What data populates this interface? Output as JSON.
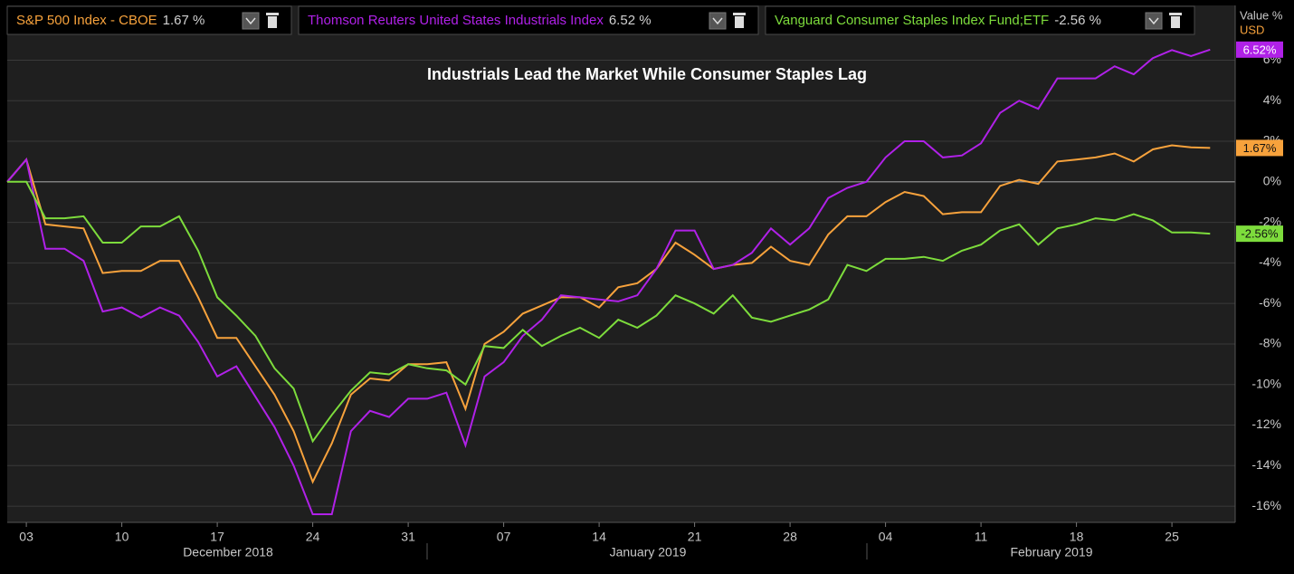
{
  "chart_data": {
    "type": "line",
    "title": "Industrials Lead the Market While Consumer Staples Lag",
    "y_label": "Value %",
    "y_unit": "USD",
    "categories": [
      null,
      "03",
      null,
      null,
      null,
      null,
      "10",
      null,
      null,
      null,
      null,
      "17",
      null,
      null,
      null,
      null,
      "24",
      null,
      null,
      null,
      null,
      "31",
      null,
      null,
      null,
      null,
      "07",
      null,
      null,
      null,
      null,
      "14",
      null,
      null,
      null,
      null,
      "21",
      null,
      null,
      null,
      null,
      "28",
      null,
      null,
      null,
      null,
      "04",
      null,
      null,
      null,
      null,
      "11",
      null,
      null,
      null,
      null,
      "18",
      null,
      null,
      null,
      null,
      "25",
      null,
      null
    ],
    "month_labels": [
      "December 2018",
      "January 2019",
      "February 2019"
    ],
    "ylim": [
      -16.8,
      8.7
    ],
    "yticks": [
      {
        "value": 6,
        "label": "6%"
      },
      {
        "value": 4,
        "label": "4%"
      },
      {
        "value": 2,
        "label": "2%"
      },
      {
        "value": 0,
        "label": "0%"
      },
      {
        "value": -2,
        "label": "-2%"
      },
      {
        "value": -4,
        "label": "-4%"
      },
      {
        "value": -6,
        "label": "-6%"
      },
      {
        "value": -8,
        "label": "-8%"
      },
      {
        "value": -10,
        "label": "-10%"
      },
      {
        "value": -12,
        "label": "-12%"
      },
      {
        "value": -14,
        "label": "-14%"
      },
      {
        "value": -16,
        "label": "-16%"
      }
    ],
    "grid": true,
    "zero_line": true,
    "series": [
      {
        "name": "S&P 500 Index - CBOE",
        "legend_value": "1.67 %",
        "end_label": "1.67%",
        "color": "#f7a23c",
        "values": [
          0,
          1.1,
          -2.1,
          -2.2,
          -2.3,
          -4.5,
          -4.4,
          -4.4,
          -3.9,
          -3.9,
          -5.7,
          -7.7,
          -7.7,
          -9.1,
          -10.5,
          -12.3,
          -14.8,
          -12.9,
          -10.5,
          -9.7,
          -9.8,
          -9.0,
          -9.0,
          -8.9,
          -11.2,
          -8.0,
          -7.4,
          -6.5,
          -6.1,
          -5.7,
          -5.7,
          -6.2,
          -5.2,
          -5.0,
          -4.3,
          -3.0,
          -3.6,
          -4.3,
          -4.1,
          -4.0,
          -3.2,
          -3.9,
          -4.1,
          -2.6,
          -1.7,
          -1.7,
          -1.0,
          -0.5,
          -0.7,
          -1.6,
          -1.5,
          -1.5,
          -0.2,
          0.1,
          -0.1,
          1.0,
          1.1,
          1.2,
          1.4,
          1.0,
          1.6,
          1.8,
          1.7,
          1.67
        ]
      },
      {
        "name": "Thomson Reuters United States Industrials Index",
        "legend_value": "6.52 %",
        "end_label": "6.52%",
        "color": "#b021e8",
        "values": [
          0,
          1.1,
          -3.3,
          -3.3,
          -3.9,
          -6.4,
          -6.2,
          -6.7,
          -6.2,
          -6.6,
          -7.9,
          -9.6,
          -9.1,
          -10.6,
          -12.1,
          -14.0,
          -16.4,
          -16.4,
          -12.3,
          -11.3,
          -11.6,
          -10.7,
          -10.7,
          -10.4,
          -13.0,
          -9.6,
          -8.9,
          -7.6,
          -6.8,
          -5.6,
          -5.7,
          -5.8,
          -5.9,
          -5.6,
          -4.3,
          -2.4,
          -2.4,
          -4.3,
          -4.1,
          -3.5,
          -2.3,
          -3.1,
          -2.3,
          -0.8,
          -0.3,
          0.0,
          1.2,
          2.0,
          2.0,
          1.2,
          1.3,
          1.9,
          3.4,
          4.0,
          3.6,
          5.1,
          5.1,
          5.1,
          5.7,
          5.3,
          6.1,
          6.5,
          6.2,
          6.52
        ]
      },
      {
        "name": "Vanguard Consumer Staples Index Fund;ETF",
        "legend_value": "-2.56 %",
        "end_label": "-2.56%",
        "color": "#7ddc3c",
        "values": [
          0,
          0.0,
          -1.8,
          -1.8,
          -1.7,
          -3.0,
          -3.0,
          -2.2,
          -2.2,
          -1.7,
          -3.4,
          -5.7,
          -6.6,
          -7.6,
          -9.2,
          -10.2,
          -12.8,
          -11.5,
          -10.3,
          -9.4,
          -9.5,
          -9.0,
          -9.2,
          -9.3,
          -10.0,
          -8.1,
          -8.2,
          -7.3,
          -8.1,
          -7.6,
          -7.2,
          -7.7,
          -6.8,
          -7.2,
          -6.6,
          -5.6,
          -6.0,
          -6.5,
          -5.6,
          -6.7,
          -6.9,
          -6.6,
          -6.3,
          -5.8,
          -4.1,
          -4.4,
          -3.8,
          -3.8,
          -3.7,
          -3.9,
          -3.4,
          -3.1,
          -2.4,
          -2.1,
          -3.1,
          -2.3,
          -2.1,
          -1.8,
          -1.9,
          -1.6,
          -1.9,
          -2.5,
          -2.5,
          -2.56
        ]
      }
    ]
  }
}
